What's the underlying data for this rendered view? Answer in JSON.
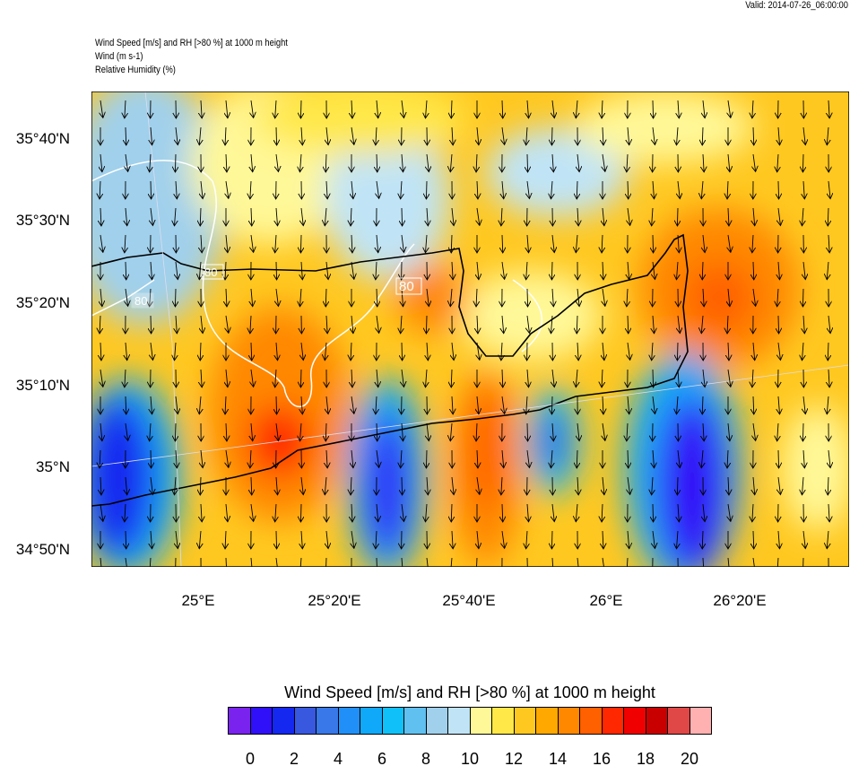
{
  "valid": "Valid: 2014-07-26_06:00:00",
  "titles": [
    "Wind Speed [m/s] and RH [>80 %] at 1000 m height",
    "Wind   (m s-1)",
    "Relative Humidity   (%)"
  ],
  "lat_ticks": [
    "35°40'N",
    "35°30'N",
    "35°20'N",
    "35°10'N",
    "35°N",
    "34°50'N"
  ],
  "lon_ticks": [
    "25°E",
    "25°20'E",
    "25°40'E",
    "26°E",
    "26°20'E"
  ],
  "contour_labels": [
    "80",
    "80",
    "80"
  ],
  "colorbar": {
    "title": "Wind Speed [m/s] and RH [>80 %] at 1000 m height",
    "colors": [
      "#7a22ee",
      "#3010f8",
      "#1428f0",
      "#3858e0",
      "#3878e8",
      "#2090f8",
      "#10a8f8",
      "#10c0f8",
      "#60c0f0",
      "#a0d0ec",
      "#c0e4f6",
      "#fff898",
      "#ffe848",
      "#ffc820",
      "#ffa800",
      "#ff8800",
      "#ff6000",
      "#ff2800",
      "#f00000",
      "#c80000",
      "#e04848",
      "#ffb0b0"
    ],
    "labels": [
      "0",
      "2",
      "4",
      "6",
      "8",
      "10",
      "12",
      "14",
      "16",
      "18",
      "20"
    ]
  }
}
